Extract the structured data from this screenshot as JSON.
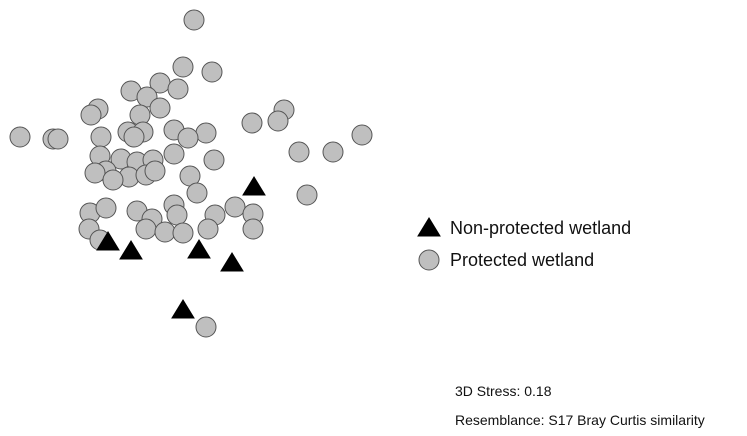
{
  "chart_data": {
    "type": "scatter",
    "title": "",
    "xlabel": "",
    "ylabel": "",
    "grid": false,
    "legend_position": "right",
    "axes_visible": false,
    "series": [
      {
        "name": "Non-protected wetland",
        "marker": "triangle",
        "color": "#000000",
        "points": [
          [
            108,
            241
          ],
          [
            131,
            250
          ],
          [
            199,
            249
          ],
          [
            232,
            262
          ],
          [
            254,
            186
          ],
          [
            183,
            309
          ]
        ]
      },
      {
        "name": "Protected wetland",
        "marker": "circle",
        "color": "#bfbfbf",
        "points": [
          [
            194,
            20
          ],
          [
            183,
            67
          ],
          [
            212,
            72
          ],
          [
            160,
            83
          ],
          [
            178,
            89
          ],
          [
            131,
            91
          ],
          [
            147,
            97
          ],
          [
            98,
            109
          ],
          [
            91,
            115
          ],
          [
            160,
            108
          ],
          [
            140,
            115
          ],
          [
            284,
            110
          ],
          [
            278,
            121
          ],
          [
            252,
            123
          ],
          [
            20,
            137
          ],
          [
            53,
            139
          ],
          [
            58,
            139
          ],
          [
            101,
            137
          ],
          [
            128,
            132
          ],
          [
            143,
            132
          ],
          [
            134,
            137
          ],
          [
            174,
            130
          ],
          [
            206,
            133
          ],
          [
            188,
            138
          ],
          [
            362,
            135
          ],
          [
            299,
            152
          ],
          [
            333,
            152
          ],
          [
            174,
            154
          ],
          [
            214,
            160
          ],
          [
            100,
            156
          ],
          [
            121,
            159
          ],
          [
            137,
            162
          ],
          [
            153,
            160
          ],
          [
            106,
            171
          ],
          [
            95,
            173
          ],
          [
            129,
            177
          ],
          [
            113,
            180
          ],
          [
            146,
            175
          ],
          [
            155,
            171
          ],
          [
            190,
            176
          ],
          [
            197,
            193
          ],
          [
            307,
            195
          ],
          [
            235,
            207
          ],
          [
            253,
            214
          ],
          [
            253,
            229
          ],
          [
            215,
            215
          ],
          [
            137,
            211
          ],
          [
            90,
            213
          ],
          [
            106,
            208
          ],
          [
            174,
            205
          ],
          [
            177,
            215
          ],
          [
            152,
            219
          ],
          [
            89,
            229
          ],
          [
            100,
            240
          ],
          [
            146,
            229
          ],
          [
            165,
            232
          ],
          [
            183,
            233
          ],
          [
            208,
            229
          ],
          [
            206,
            327
          ]
        ]
      }
    ]
  },
  "legend": {
    "items": [
      {
        "label": "Non-protected wetland",
        "marker": "triangle"
      },
      {
        "label": "Protected wetland",
        "marker": "circle"
      }
    ]
  },
  "notes": {
    "stress": "3D Stress: 0.18",
    "resemblance": "Resemblance: S17 Bray Curtis similarity"
  }
}
